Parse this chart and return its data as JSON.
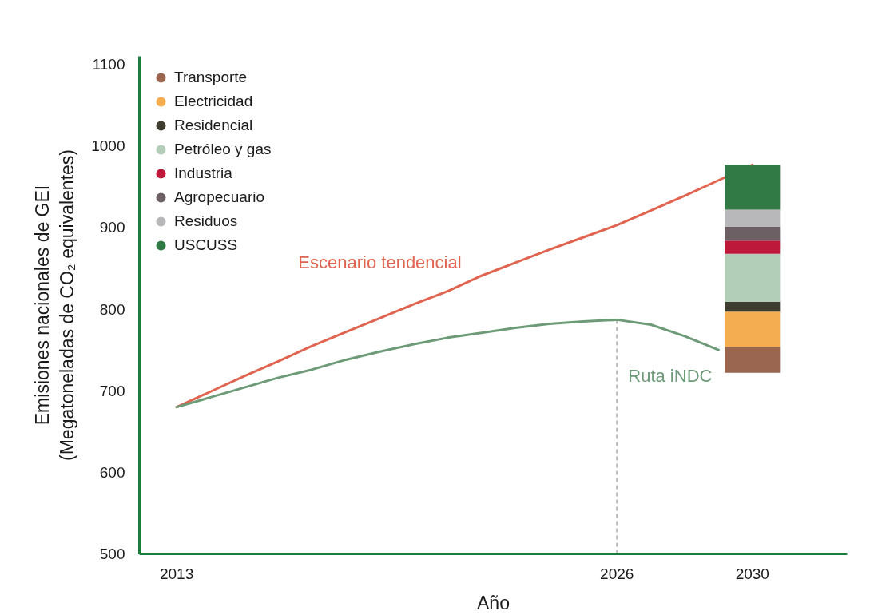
{
  "chart_data": {
    "type": "line",
    "xlabel": "Año",
    "ylabel": "Emisiones nacionales de GEI\n(Megatoneladas de CO₂ equivalentes)",
    "x": [
      2013,
      2014,
      2015,
      2016,
      2017,
      2018,
      2019,
      2020,
      2021,
      2022,
      2023,
      2024,
      2025,
      2026,
      2027,
      2028,
      2029,
      2030
    ],
    "xlim": [
      2011.9,
      2032.8
    ],
    "xticks": [
      2013,
      2026,
      2030
    ],
    "ylim": [
      500,
      1110
    ],
    "yticks": [
      500,
      600,
      700,
      800,
      900,
      1000,
      1100
    ],
    "grid": false,
    "legend": "top left",
    "series": [
      {
        "name": "Escenario tendencial",
        "color": "#e0644f",
        "values": [
          680,
          699,
          718,
          736,
          755,
          772,
          789,
          806,
          822,
          841,
          857,
          873,
          888,
          903,
          921,
          939,
          958,
          977
        ]
      },
      {
        "name": "Ruta iNDC",
        "color": "#6d9b78",
        "values": [
          680,
          692,
          704,
          716,
          726,
          738,
          748,
          757,
          765,
          771,
          777,
          782,
          785,
          787,
          781,
          767,
          750,
          null
        ]
      },
      {
        "name": "Transporte",
        "type": "bar",
        "color": "#9a6650",
        "base": [
          null,
          null,
          null,
          null,
          null,
          null,
          null,
          null,
          null,
          null,
          null,
          null,
          null,
          null,
          null,
          null,
          null,
          722
        ],
        "values": [
          null,
          null,
          null,
          null,
          null,
          null,
          null,
          null,
          null,
          null,
          null,
          null,
          null,
          null,
          null,
          null,
          null,
          32
        ]
      },
      {
        "name": "Electricidad",
        "type": "bar",
        "color": "#f5ad52",
        "base": [
          null,
          null,
          null,
          null,
          null,
          null,
          null,
          null,
          null,
          null,
          null,
          null,
          null,
          null,
          null,
          null,
          null,
          754
        ],
        "values": [
          null,
          null,
          null,
          null,
          null,
          null,
          null,
          null,
          null,
          null,
          null,
          null,
          null,
          null,
          null,
          null,
          null,
          43
        ]
      },
      {
        "name": "Residencial",
        "type": "bar",
        "color": "#3f3d30",
        "base": [
          null,
          null,
          null,
          null,
          null,
          null,
          null,
          null,
          null,
          null,
          null,
          null,
          null,
          null,
          null,
          null,
          null,
          797
        ],
        "values": [
          null,
          null,
          null,
          null,
          null,
          null,
          null,
          null,
          null,
          null,
          null,
          null,
          null,
          null,
          null,
          null,
          null,
          12
        ]
      },
      {
        "name": "Petróleo y gas",
        "type": "bar",
        "color": "#b2cdb8",
        "base": [
          null,
          null,
          null,
          null,
          null,
          null,
          null,
          null,
          null,
          null,
          null,
          null,
          null,
          null,
          null,
          null,
          null,
          809
        ],
        "values": [
          null,
          null,
          null,
          null,
          null,
          null,
          null,
          null,
          null,
          null,
          null,
          null,
          null,
          null,
          null,
          null,
          null,
          59
        ]
      },
      {
        "name": "Industria",
        "type": "bar",
        "color": "#bd1a3b",
        "base": [
          null,
          null,
          null,
          null,
          null,
          null,
          null,
          null,
          null,
          null,
          null,
          null,
          null,
          null,
          null,
          null,
          null,
          868
        ],
        "values": [
          null,
          null,
          null,
          null,
          null,
          null,
          null,
          null,
          null,
          null,
          null,
          null,
          null,
          null,
          null,
          null,
          null,
          16
        ]
      },
      {
        "name": "Agropecuario",
        "type": "bar",
        "color": "#6c6064",
        "base": [
          null,
          null,
          null,
          null,
          null,
          null,
          null,
          null,
          null,
          null,
          null,
          null,
          null,
          null,
          null,
          null,
          null,
          884
        ],
        "values": [
          null,
          null,
          null,
          null,
          null,
          null,
          null,
          null,
          null,
          null,
          null,
          null,
          null,
          null,
          null,
          null,
          null,
          17
        ]
      },
      {
        "name": "Residuos",
        "type": "bar",
        "color": "#b8b7b9",
        "base": [
          null,
          null,
          null,
          null,
          null,
          null,
          null,
          null,
          null,
          null,
          null,
          null,
          null,
          null,
          null,
          null,
          null,
          901
        ],
        "values": [
          null,
          null,
          null,
          null,
          null,
          null,
          null,
          null,
          null,
          null,
          null,
          null,
          null,
          null,
          null,
          null,
          null,
          21
        ]
      },
      {
        "name": "USCUSS",
        "type": "bar",
        "color": "#317a45",
        "base": [
          null,
          null,
          null,
          null,
          null,
          null,
          null,
          null,
          null,
          null,
          null,
          null,
          null,
          null,
          null,
          null,
          null,
          922
        ],
        "values": [
          null,
          null,
          null,
          null,
          null,
          null,
          null,
          null,
          null,
          null,
          null,
          null,
          null,
          null,
          null,
          null,
          null,
          55
        ]
      }
    ],
    "ref_lines": [
      {
        "axis": "x",
        "value": 2026,
        "color": "#b8b8b8",
        "line_style": "dashed"
      }
    ]
  }
}
